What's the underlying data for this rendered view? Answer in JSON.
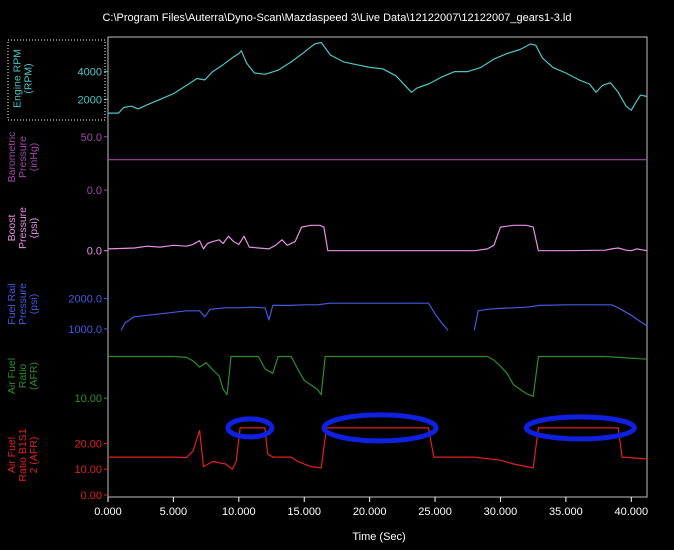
{
  "chart_data": {
    "type": "line",
    "title": "C:\\Program Files\\Auterra\\Dyno-Scan\\Mazdaspeed 3\\Live Data\\12122007\\12122007_gears1-3.ld",
    "xlabel": "Time (Sec)",
    "xlim": [
      0,
      41.2
    ],
    "xticks": [
      0,
      5,
      10,
      15,
      20,
      25,
      30,
      35,
      40
    ],
    "xtick_labels": [
      "0.000",
      "5.000",
      "10.000",
      "15.000",
      "20.000",
      "25.000",
      "30.000",
      "35.000",
      "40.000"
    ],
    "grid": false,
    "panels": [
      {
        "name_lines": [
          "Engine RPM",
          "(RPM)"
        ],
        "unit": "RPM",
        "color": "#4fc6c6",
        "ylim": [
          500,
          6500
        ],
        "yticks": [
          2000,
          4000
        ],
        "ytick_labels": [
          "2000",
          "4000"
        ],
        "selected": true,
        "points": [
          [
            0,
            1000
          ],
          [
            0.8,
            1000
          ],
          [
            1.2,
            1400
          ],
          [
            1.8,
            1500
          ],
          [
            2.3,
            1300
          ],
          [
            3,
            1600
          ],
          [
            4,
            2000
          ],
          [
            5,
            2400
          ],
          [
            6,
            3000
          ],
          [
            6.8,
            3500
          ],
          [
            7.4,
            3400
          ],
          [
            8,
            4000
          ],
          [
            8.8,
            4500
          ],
          [
            9.5,
            5000
          ],
          [
            10,
            5300
          ],
          [
            10.2,
            5500
          ],
          [
            10.6,
            4600
          ],
          [
            11.2,
            3900
          ],
          [
            12,
            3800
          ],
          [
            13,
            4100
          ],
          [
            14,
            4700
          ],
          [
            15,
            5400
          ],
          [
            15.8,
            6000
          ],
          [
            16.3,
            6100
          ],
          [
            17,
            5200
          ],
          [
            18,
            4700
          ],
          [
            19,
            4500
          ],
          [
            20,
            4300
          ],
          [
            21,
            4200
          ],
          [
            22,
            3700
          ],
          [
            22.8,
            2900
          ],
          [
            23.2,
            2500
          ],
          [
            23.6,
            2800
          ],
          [
            24.5,
            3100
          ],
          [
            25.5,
            3600
          ],
          [
            26.5,
            4000
          ],
          [
            27.5,
            4000
          ],
          [
            28.5,
            4300
          ],
          [
            29.5,
            4900
          ],
          [
            30.5,
            5300
          ],
          [
            31.5,
            5600
          ],
          [
            32.3,
            6000
          ],
          [
            32.7,
            5900
          ],
          [
            33.2,
            5000
          ],
          [
            34,
            4300
          ],
          [
            35,
            3900
          ],
          [
            36,
            3400
          ],
          [
            36.8,
            3100
          ],
          [
            37.3,
            2500
          ],
          [
            37.8,
            3000
          ],
          [
            38.4,
            3200
          ],
          [
            39,
            2500
          ],
          [
            39.6,
            1500
          ],
          [
            40,
            1200
          ],
          [
            40.3,
            1700
          ],
          [
            40.7,
            2300
          ],
          [
            41.2,
            2200
          ]
        ]
      },
      {
        "name_lines": [
          "Barometric",
          "Pressure",
          "(inHg)"
        ],
        "unit": "inHg",
        "color": "#a048a8",
        "ylim": [
          0,
          62
        ],
        "yticks": [
          0,
          50
        ],
        "ytick_labels": [
          "0.0",
          "50.0"
        ],
        "points": [
          [
            0,
            28.5
          ],
          [
            41.2,
            28.5
          ]
        ]
      },
      {
        "name_lines": [
          "Boost",
          "Pressure",
          "(psi)"
        ],
        "unit": "psi",
        "color": "#e890e6",
        "ylim": [
          -4,
          29
        ],
        "yticks": [
          0
        ],
        "ytick_labels": [
          "0.0"
        ],
        "points": [
          [
            0,
            1
          ],
          [
            2,
            1.5
          ],
          [
            3,
            2.5
          ],
          [
            4,
            2
          ],
          [
            5,
            3
          ],
          [
            6,
            2.5
          ],
          [
            6.5,
            3.5
          ],
          [
            7,
            5.5
          ],
          [
            7.3,
            1
          ],
          [
            7.6,
            4
          ],
          [
            8,
            5
          ],
          [
            8.5,
            6
          ],
          [
            8.8,
            4
          ],
          [
            9.2,
            8
          ],
          [
            9.6,
            5
          ],
          [
            10,
            3.5
          ],
          [
            10.4,
            8
          ],
          [
            10.8,
            2
          ],
          [
            11.5,
            1.5
          ],
          [
            12.3,
            1
          ],
          [
            12.8,
            3
          ],
          [
            13.3,
            6
          ],
          [
            13.7,
            3
          ],
          [
            14.3,
            5
          ],
          [
            14.8,
            13
          ],
          [
            15.5,
            14
          ],
          [
            16.2,
            14
          ],
          [
            16.5,
            13
          ],
          [
            16.8,
            0
          ],
          [
            20,
            0
          ],
          [
            25,
            0
          ],
          [
            28,
            0
          ],
          [
            28.5,
            0.5
          ],
          [
            29,
            1
          ],
          [
            29.5,
            3
          ],
          [
            30,
            13
          ],
          [
            31,
            14
          ],
          [
            32,
            14
          ],
          [
            32.5,
            13
          ],
          [
            32.9,
            0
          ],
          [
            35,
            0
          ],
          [
            38,
            0.3
          ],
          [
            38.5,
            1
          ],
          [
            39,
            1.5
          ],
          [
            39.6,
            0.3
          ],
          [
            40,
            0
          ],
          [
            40.4,
            1
          ],
          [
            41.2,
            0
          ]
        ]
      },
      {
        "name_lines": [
          "Fuel Rail",
          "Pressure",
          "(psi)"
        ],
        "unit": "psi",
        "color": "#4858e0",
        "ylim": [
          700,
          2950
        ],
        "yticks": [
          1000,
          2000
        ],
        "ytick_labels": [
          "1000.0",
          "2000.0"
        ],
        "points": [
          [
            1,
            950
          ],
          [
            1.3,
            1200
          ],
          [
            2,
            1400
          ],
          [
            3,
            1450
          ],
          [
            4,
            1500
          ],
          [
            5,
            1550
          ],
          [
            6,
            1600
          ],
          [
            7,
            1600
          ],
          [
            7.4,
            1400
          ],
          [
            7.8,
            1650
          ],
          [
            9,
            1700
          ],
          [
            10,
            1700
          ],
          [
            11,
            1720
          ],
          [
            12,
            1700
          ],
          [
            12.3,
            1300
          ],
          [
            12.6,
            1780
          ],
          [
            14,
            1780
          ],
          [
            15,
            1800
          ],
          [
            16,
            1800
          ],
          [
            17,
            1850
          ],
          [
            20,
            1850
          ],
          [
            23,
            1850
          ],
          [
            24.5,
            1850
          ],
          [
            25,
            1500
          ],
          [
            25.5,
            1200
          ],
          [
            26,
            950
          ],
          [
            26.3,
            null
          ],
          [
            27.8,
            null
          ],
          [
            28,
            950
          ],
          [
            28.3,
            1600
          ],
          [
            29,
            1650
          ],
          [
            30,
            1680
          ],
          [
            31,
            1700
          ],
          [
            32,
            1720
          ],
          [
            33,
            1780
          ],
          [
            35,
            1800
          ],
          [
            37.5,
            1800
          ],
          [
            38.5,
            1800
          ],
          [
            39,
            1700
          ],
          [
            40,
            1450
          ],
          [
            40.5,
            1300
          ],
          [
            41.2,
            1100
          ]
        ]
      },
      {
        "name_lines": [
          "Air Fuel",
          "Ratio",
          "(AFR)"
        ],
        "unit": "AFR",
        "color": "#2e8c2e",
        "ylim": [
          9,
          16
        ],
        "yticks": [
          10
        ],
        "ytick_labels": [
          "10.00"
        ],
        "points": [
          [
            0,
            14.7
          ],
          [
            5,
            14.7
          ],
          [
            6,
            14.6
          ],
          [
            6.5,
            14.2
          ],
          [
            7,
            13.5
          ],
          [
            7.5,
            14.0
          ],
          [
            8,
            13.2
          ],
          [
            8.5,
            12.5
          ],
          [
            8.8,
            11.0
          ],
          [
            9.1,
            10.4
          ],
          [
            9.4,
            14.7
          ],
          [
            10.5,
            14.7
          ],
          [
            11.5,
            14.7
          ],
          [
            12,
            13.3
          ],
          [
            12.6,
            12.8
          ],
          [
            13,
            14.7
          ],
          [
            14,
            14.7
          ],
          [
            14.5,
            13.3
          ],
          [
            15,
            12.0
          ],
          [
            15.5,
            11.5
          ],
          [
            16,
            11.0
          ],
          [
            16.3,
            10.4
          ],
          [
            16.6,
            14.7
          ],
          [
            20,
            14.7
          ],
          [
            25,
            14.7
          ],
          [
            28,
            14.7
          ],
          [
            29,
            14.7
          ],
          [
            29.5,
            14.3
          ],
          [
            30,
            13.6
          ],
          [
            30.5,
            12.8
          ],
          [
            31,
            11.5
          ],
          [
            31.5,
            11.0
          ],
          [
            32,
            10.5
          ],
          [
            32.5,
            10.2
          ],
          [
            32.9,
            14.7
          ],
          [
            35,
            14.7
          ],
          [
            38,
            14.7
          ],
          [
            39,
            14.6
          ],
          [
            41.2,
            14.4
          ]
        ]
      },
      {
        "name_lines": [
          "Air Fuel",
          "Ratio B1S1",
          "2 (AFR)"
        ],
        "unit": "AFR",
        "color": "#e02020",
        "ylim": [
          0,
          31
        ],
        "yticks": [
          0,
          10,
          20
        ],
        "ytick_labels": [
          "0.00",
          "10.00",
          "20.00"
        ],
        "points": [
          [
            0,
            14.7
          ],
          [
            5,
            14.7
          ],
          [
            6,
            14.5
          ],
          [
            6.5,
            17
          ],
          [
            7,
            25
          ],
          [
            7.3,
            11
          ],
          [
            8,
            13
          ],
          [
            9,
            12
          ],
          [
            9.5,
            10
          ],
          [
            9.8,
            13
          ],
          [
            10.1,
            26
          ],
          [
            12,
            26
          ],
          [
            12.2,
            16
          ],
          [
            12.6,
            14.7
          ],
          [
            14,
            14.7
          ],
          [
            14.5,
            13
          ],
          [
            15.5,
            11
          ],
          [
            16.3,
            10.5
          ],
          [
            16.7,
            26
          ],
          [
            20,
            26
          ],
          [
            24.5,
            26
          ],
          [
            24.9,
            14.7
          ],
          [
            28,
            14.7
          ],
          [
            30,
            13.5
          ],
          [
            31,
            12
          ],
          [
            32,
            11
          ],
          [
            32.5,
            10.5
          ],
          [
            32.9,
            26
          ],
          [
            36,
            26
          ],
          [
            39,
            26
          ],
          [
            39.3,
            14.7
          ],
          [
            41.2,
            14
          ]
        ]
      }
    ],
    "annotations": [
      {
        "shape": "ellipse",
        "panel": 5,
        "x": 10.85,
        "y": 26,
        "color": "#1020e0"
      },
      {
        "shape": "ellipse",
        "panel": 5,
        "x": 20.8,
        "y": 26,
        "color": "#1020e0"
      },
      {
        "shape": "ellipse",
        "panel": 5,
        "x": 36.1,
        "y": 26,
        "color": "#1020e0"
      }
    ]
  }
}
